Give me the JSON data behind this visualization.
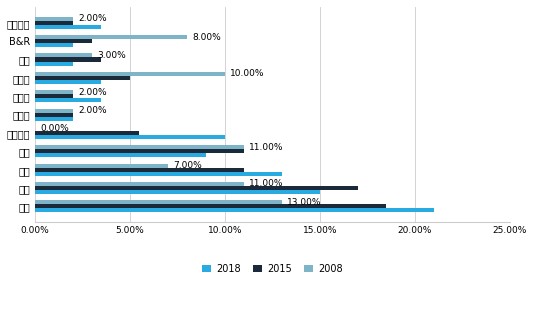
{
  "categories": [
    "汇川技术",
    "B&R",
    "三洋",
    "西门子",
    "施耐德",
    "埃斯顿",
    "汇川技术",
    "三菱",
    "台达",
    "安川",
    "松下"
  ],
  "series": {
    "2018": [
      3.5,
      2.0,
      2.0,
      3.5,
      3.5,
      2.0,
      10.0,
      9.0,
      13.0,
      15.0,
      21.0
    ],
    "2015": [
      2.0,
      3.0,
      3.5,
      5.0,
      2.0,
      2.0,
      5.5,
      11.0,
      11.0,
      17.0,
      18.5
    ],
    "2008": [
      2.0,
      8.0,
      3.0,
      10.0,
      2.0,
      2.0,
      0.0,
      11.0,
      7.0,
      11.0,
      13.0
    ]
  },
  "labels_2008": [
    "2.00%",
    "8.00%",
    "3.00%",
    "10.00%",
    "2.00%",
    "2.00%",
    "0.00%",
    "11.00%",
    "7.00%",
    "11.00%",
    "13.00%"
  ],
  "colors": {
    "2018": "#29ABE2",
    "2015": "#1B2A3B",
    "2008": "#7EB4C8"
  },
  "xlim": [
    0,
    25
  ],
  "xticks": [
    0,
    5,
    10,
    15,
    20,
    25
  ],
  "xticklabels": [
    "0.00%",
    "5.00%",
    "10.00%",
    "15.00%",
    "20.00%",
    "25.00%"
  ],
  "bar_height": 0.22,
  "legend_labels": [
    "2018",
    "2015",
    "2008"
  ],
  "background_color": "#FFFFFF",
  "grid_color": "#CCCCCC",
  "label_fontsize": 6.5,
  "tick_fontsize": 6.5,
  "ytick_fontsize": 7.0
}
